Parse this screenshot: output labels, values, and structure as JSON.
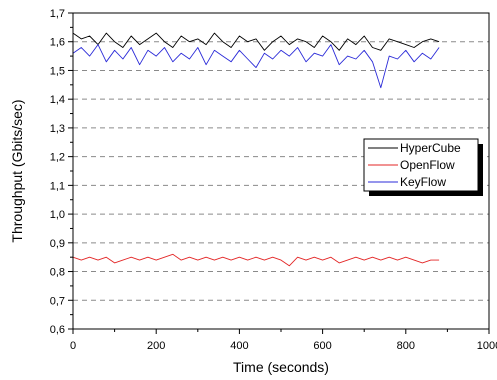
{
  "chart_data": {
    "type": "line",
    "xlabel": "Time (seconds)",
    "ylabel": "Throughput (Gbits/sec)",
    "xlim": [
      0,
      1000
    ],
    "ylim": [
      0.6,
      1.7
    ],
    "x_ticks": [
      0,
      200,
      400,
      600,
      800,
      1000
    ],
    "x_tick_labels": [
      "0",
      "200",
      "400",
      "600",
      "800",
      "1000"
    ],
    "y_ticks": [
      0.6,
      0.7,
      0.8,
      0.9,
      1.0,
      1.1,
      1.2,
      1.3,
      1.4,
      1.5,
      1.6,
      1.7
    ],
    "y_tick_labels": [
      "0,6",
      "0,7",
      "0,8",
      "0,9",
      "1,0",
      "1,1",
      "1,2",
      "1,3",
      "1,4",
      "1,5",
      "1,6",
      "1,7"
    ],
    "grid": "horizontal dashed",
    "legend_position": "right",
    "x": [
      0,
      20,
      40,
      60,
      80,
      100,
      120,
      140,
      160,
      180,
      200,
      220,
      240,
      260,
      280,
      300,
      320,
      340,
      360,
      380,
      400,
      420,
      440,
      460,
      480,
      500,
      520,
      540,
      560,
      580,
      600,
      620,
      640,
      660,
      680,
      700,
      720,
      740,
      760,
      780,
      800,
      820,
      840,
      860,
      880
    ],
    "series": [
      {
        "name": "HyperCube",
        "color": "#000000",
        "values": [
          1.63,
          1.61,
          1.62,
          1.59,
          1.63,
          1.6,
          1.58,
          1.62,
          1.59,
          1.61,
          1.63,
          1.6,
          1.58,
          1.62,
          1.6,
          1.61,
          1.59,
          1.63,
          1.6,
          1.58,
          1.62,
          1.6,
          1.61,
          1.57,
          1.6,
          1.62,
          1.59,
          1.61,
          1.6,
          1.58,
          1.62,
          1.6,
          1.57,
          1.61,
          1.59,
          1.62,
          1.58,
          1.57,
          1.61,
          1.6,
          1.59,
          1.58,
          1.6,
          1.61,
          1.6
        ]
      },
      {
        "name": "OpenFlow",
        "color": "#e32626",
        "values": [
          0.85,
          0.84,
          0.85,
          0.84,
          0.85,
          0.83,
          0.84,
          0.85,
          0.84,
          0.85,
          0.84,
          0.85,
          0.86,
          0.84,
          0.85,
          0.84,
          0.85,
          0.84,
          0.85,
          0.84,
          0.85,
          0.84,
          0.85,
          0.84,
          0.85,
          0.84,
          0.82,
          0.85,
          0.84,
          0.85,
          0.84,
          0.85,
          0.83,
          0.84,
          0.85,
          0.84,
          0.85,
          0.84,
          0.85,
          0.84,
          0.85,
          0.84,
          0.83,
          0.84,
          0.84
        ]
      },
      {
        "name": "KeyFlow",
        "color": "#2b2bd8",
        "values": [
          1.56,
          1.58,
          1.55,
          1.59,
          1.53,
          1.57,
          1.54,
          1.58,
          1.52,
          1.57,
          1.55,
          1.58,
          1.53,
          1.56,
          1.54,
          1.58,
          1.52,
          1.57,
          1.55,
          1.53,
          1.57,
          1.54,
          1.51,
          1.56,
          1.54,
          1.57,
          1.55,
          1.58,
          1.53,
          1.56,
          1.55,
          1.59,
          1.52,
          1.55,
          1.54,
          1.57,
          1.53,
          1.44,
          1.55,
          1.54,
          1.57,
          1.53,
          1.56,
          1.54,
          1.58
        ]
      }
    ]
  }
}
